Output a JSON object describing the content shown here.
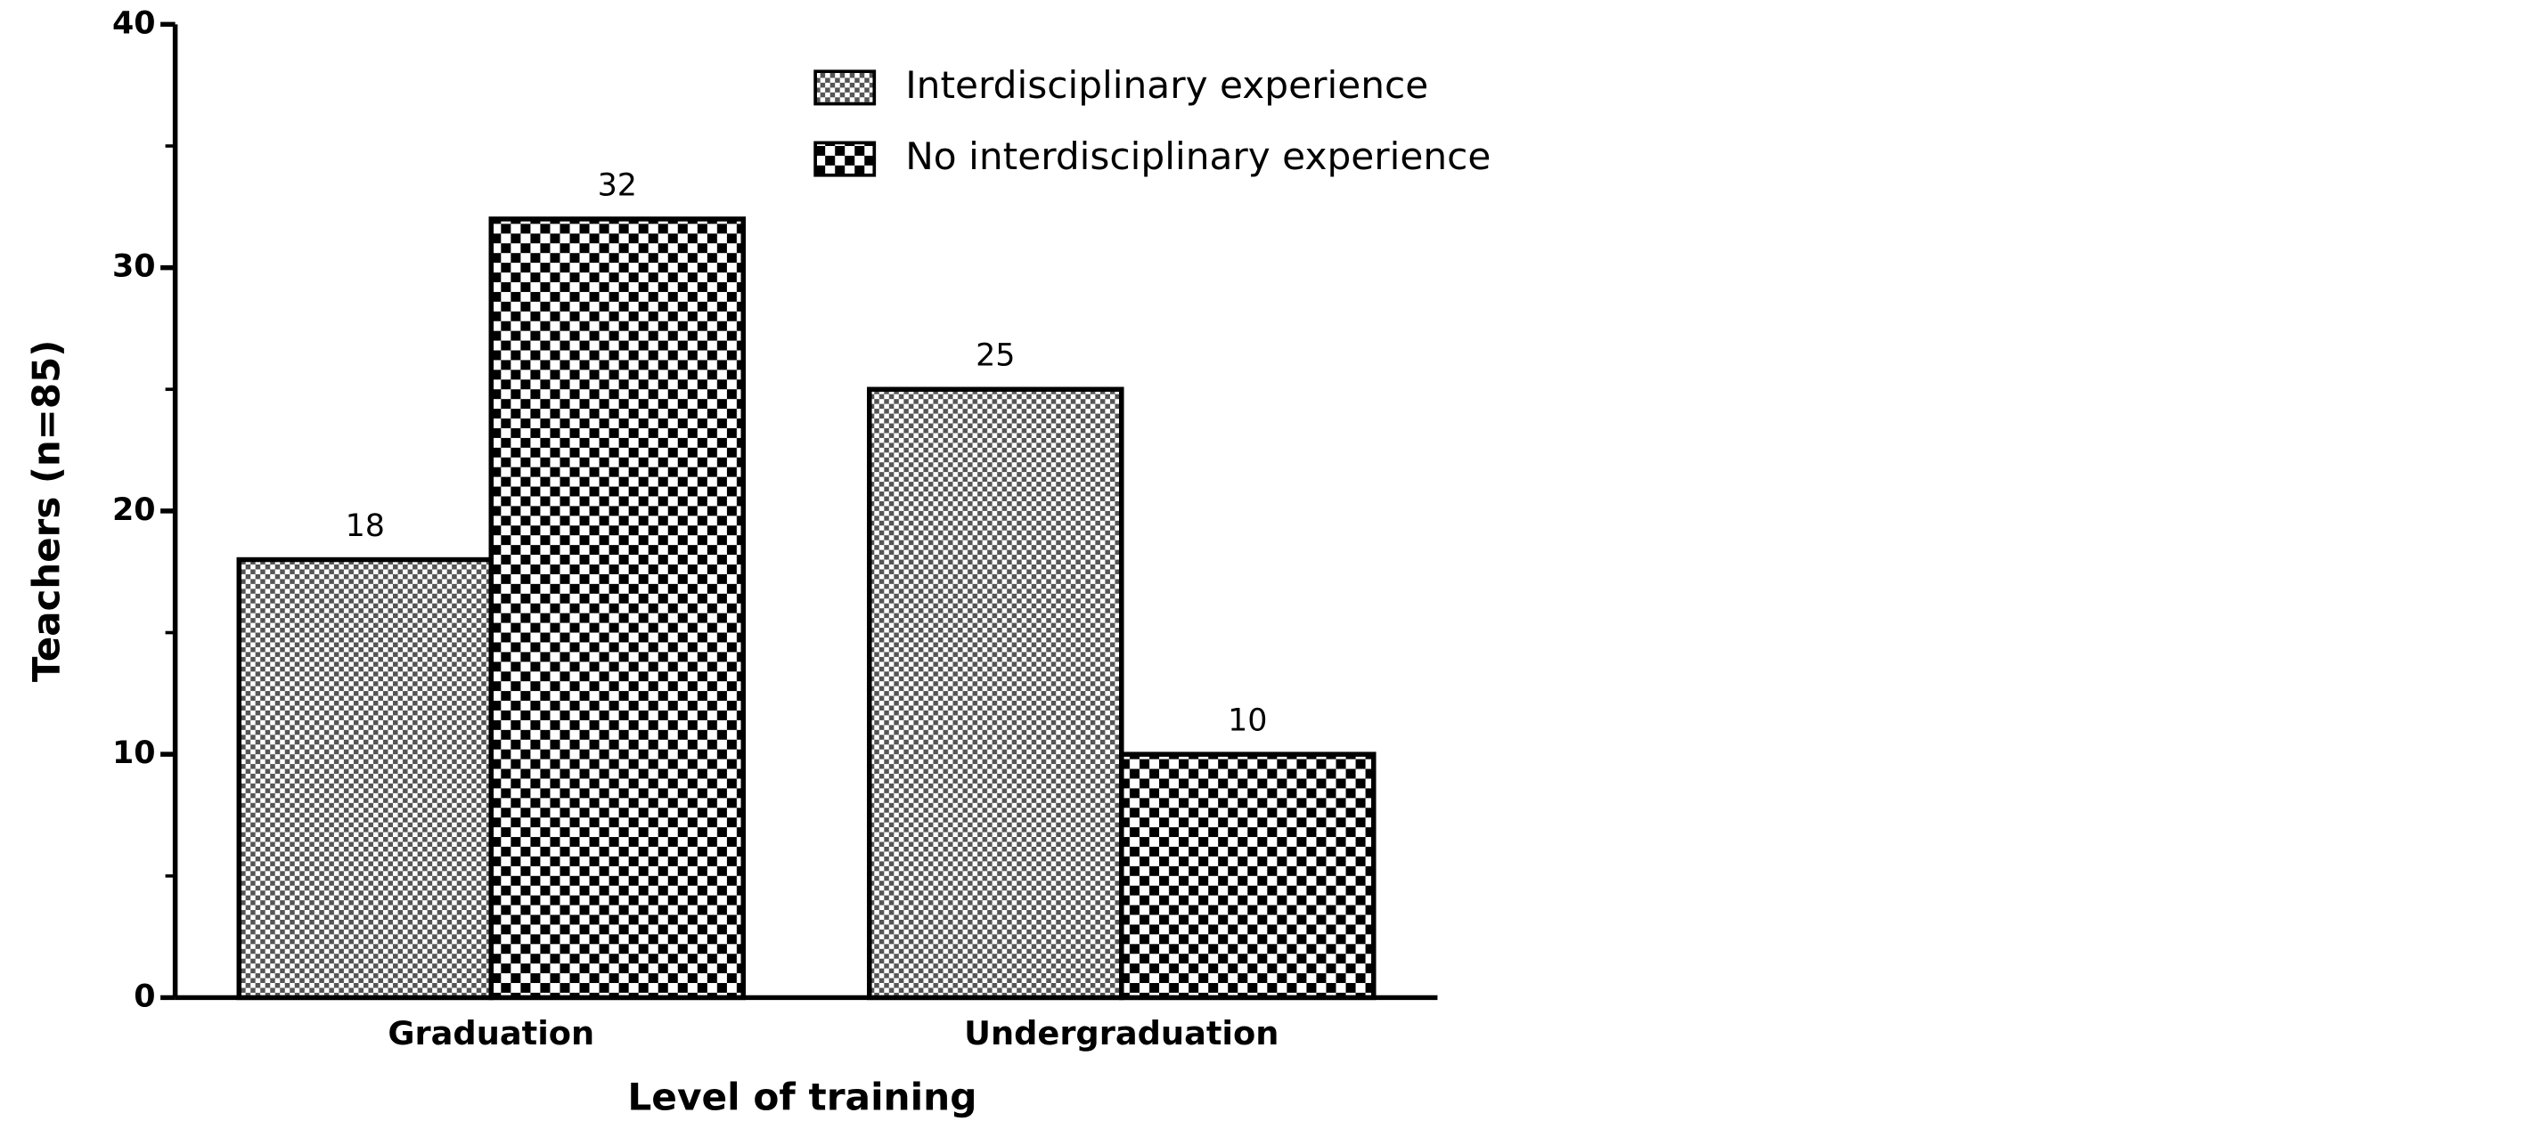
{
  "chart_data": {
    "type": "bar",
    "categories": [
      "Graduation",
      "Undergraduation"
    ],
    "series": [
      {
        "name": "Interdisciplinary experience",
        "color": "#555555",
        "values": [
          18,
          25
        ]
      },
      {
        "name": "No interdisciplinary experience",
        "color": "#000000",
        "values": [
          32,
          10
        ]
      }
    ],
    "xlabel": "Level of training",
    "ylabel": "Teachers (n=85)",
    "ylim": [
      0,
      40
    ],
    "yticks": [
      0,
      10,
      20,
      30,
      40
    ],
    "yticks_minor": [
      5,
      15,
      25,
      35
    ],
    "value_labels": true,
    "legend": "upper center",
    "grid": false
  }
}
